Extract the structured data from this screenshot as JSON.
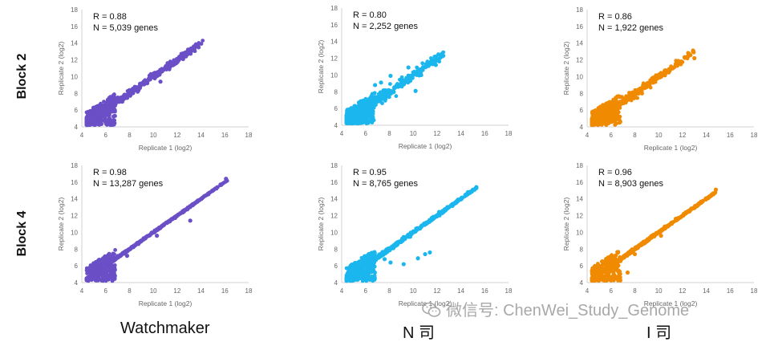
{
  "rows": [
    "Block 2",
    "Block 4"
  ],
  "columns": [
    "Watchmaker",
    "N 司",
    "I 司"
  ],
  "colors": {
    "watchmaker": "#6a4fc7",
    "n": "#1bb6ee",
    "i": "#f08a00"
  },
  "watermark": "微信号: ChenWei_Study_Genome",
  "chart_data": [
    {
      "type": "scatter",
      "row": "Block 2",
      "column": "Watchmaker",
      "color": "#6a4fc7",
      "r_label": "R = 0.88",
      "n_label": "N = 5,039 genes",
      "xlabel": "Replicate 1 (log2)",
      "ylabel": "Replicate 2 (log2)",
      "xlim": [
        4,
        18
      ],
      "ylim": [
        4,
        18
      ],
      "xticks": [
        "4",
        "6",
        "8",
        "10",
        "12",
        "14",
        "16",
        "18"
      ],
      "yticks": [
        "4",
        "6",
        "8",
        "10",
        "12",
        "14",
        "16",
        "18"
      ],
      "r": 0.88,
      "n_genes": 5039,
      "max_x": 14.2,
      "max_y": 13.9,
      "outliers": [
        [
          13.8,
          13.5
        ],
        [
          12.5,
          12.1
        ],
        [
          11.2,
          11.6
        ],
        [
          10.6,
          9.4
        ],
        [
          9.8,
          10.3
        ]
      ]
    },
    {
      "type": "scatter",
      "row": "Block 2",
      "column": "N 司",
      "color": "#1bb6ee",
      "r_label": "R = 0.80",
      "n_label": "N = 2,252 genes",
      "xlabel": "Replicate 1 (log2)",
      "ylabel": "Replicate 2 (log2)",
      "xlim": [
        4,
        18
      ],
      "ylim": [
        4,
        18
      ],
      "xticks": [
        "4",
        "6",
        "8",
        "10",
        "12",
        "14",
        "16",
        "18"
      ],
      "yticks": [
        "4",
        "6",
        "8",
        "10",
        "12",
        "14",
        "16",
        "18"
      ],
      "r": 0.8,
      "n_genes": 2252,
      "max_x": 12.6,
      "max_y": 12.4,
      "outliers": [
        [
          12.4,
          12.3
        ],
        [
          11.9,
          11.2
        ],
        [
          10.8,
          10.6
        ],
        [
          9.6,
          10.9
        ],
        [
          8.1,
          9.9
        ],
        [
          7.3,
          9.1
        ],
        [
          6.8,
          8.8
        ],
        [
          10.2,
          8.1
        ]
      ]
    },
    {
      "type": "scatter",
      "row": "Block 2",
      "column": "I 司",
      "color": "#f08a00",
      "r_label": "R = 0.86",
      "n_label": "N = 1,922 genes",
      "xlabel": "Replicate 1 (log2)",
      "ylabel": "Replicate 2 (log2)",
      "xlim": [
        4,
        18
      ],
      "ylim": [
        4,
        18
      ],
      "xticks": [
        "4",
        "6",
        "8",
        "10",
        "12",
        "14",
        "16",
        "18"
      ],
      "yticks": [
        "4",
        "6",
        "8",
        "10",
        "12",
        "14",
        "16",
        "18"
      ],
      "r": 0.86,
      "n_genes": 1922,
      "max_x": 13.1,
      "max_y": 12.2,
      "outliers": [
        [
          13.0,
          12.2
        ],
        [
          11.9,
          11.8
        ],
        [
          10.5,
          10.4
        ],
        [
          9.5,
          9.3
        ],
        [
          8.6,
          8.0
        ]
      ]
    },
    {
      "type": "scatter",
      "row": "Block 4",
      "column": "Watchmaker",
      "color": "#6a4fc7",
      "r_label": "R = 0.98",
      "n_label": "N = 13,287 genes",
      "xlabel": "Replicate 1 (log2)",
      "ylabel": "Replicate 2 (log2)",
      "xlim": [
        4,
        18
      ],
      "ylim": [
        4,
        18
      ],
      "xticks": [
        "4",
        "6",
        "8",
        "10",
        "12",
        "14",
        "16",
        "18"
      ],
      "yticks": [
        "4",
        "6",
        "8",
        "10",
        "12",
        "14",
        "16",
        "18"
      ],
      "r": 0.98,
      "n_genes": 13287,
      "max_x": 16.2,
      "max_y": 16.5,
      "outliers": [
        [
          16.1,
          16.4
        ],
        [
          13.1,
          11.4
        ],
        [
          10.3,
          9.6
        ],
        [
          7.8,
          7.2
        ]
      ]
    },
    {
      "type": "scatter",
      "row": "Block 4",
      "column": "N 司",
      "color": "#1bb6ee",
      "r_label": "R = 0.95",
      "n_label": "N = 8,765 genes",
      "xlabel": "Replicate 1 (log2)",
      "ylabel": "Replicate 2 (log2)",
      "xlim": [
        4,
        18
      ],
      "ylim": [
        4,
        18
      ],
      "xticks": [
        "4",
        "6",
        "8",
        "10",
        "12",
        "14",
        "16",
        "18"
      ],
      "yticks": [
        "4",
        "6",
        "8",
        "10",
        "12",
        "14",
        "16",
        "18"
      ],
      "r": 0.95,
      "n_genes": 8765,
      "max_x": 15.4,
      "max_y": 15.4,
      "outliers": [
        [
          15.3,
          15.4
        ],
        [
          14.6,
          14.8
        ],
        [
          11.4,
          7.6
        ],
        [
          11.0,
          7.4
        ],
        [
          10.4,
          6.9
        ],
        [
          9.2,
          6.2
        ],
        [
          8.1,
          6.4
        ],
        [
          7.6,
          6.8
        ]
      ]
    },
    {
      "type": "scatter",
      "row": "Block 4",
      "column": "I 司",
      "color": "#f08a00",
      "r_label": "R = 0.96",
      "n_label": "N = 8,903 genes",
      "xlabel": "Replicate 1 (log2)",
      "ylabel": "Replicate 2 (log2)",
      "xlim": [
        4,
        18
      ],
      "ylim": [
        4,
        18
      ],
      "xticks": [
        "4",
        "6",
        "8",
        "10",
        "12",
        "14",
        "16",
        "18"
      ],
      "yticks": [
        "4",
        "6",
        "8",
        "10",
        "12",
        "14",
        "16",
        "18"
      ],
      "r": 0.96,
      "n_genes": 8903,
      "max_x": 14.8,
      "max_y": 15.1,
      "outliers": [
        [
          14.8,
          15.1
        ],
        [
          13.0,
          12.9
        ],
        [
          10.2,
          9.6
        ],
        [
          8.0,
          7.4
        ],
        [
          7.4,
          5.2
        ]
      ]
    }
  ]
}
